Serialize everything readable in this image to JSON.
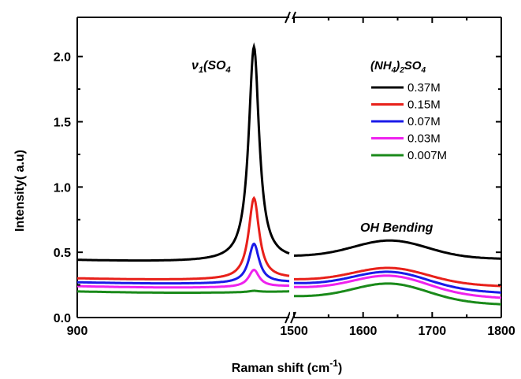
{
  "chart_data": {
    "type": "line",
    "xlabel": "Raman shift (cm",
    "xlabel_sup": "-1",
    "xlabel_close": ")",
    "ylabel": "Intensity( a.u)",
    "ylim": [
      0.0,
      2.3
    ],
    "y_ticks": [
      "0.0",
      "0.5",
      "1.0",
      "1.5",
      "2.0"
    ],
    "x_ticks_left": [
      "900"
    ],
    "x_ticks_right": [
      "1500",
      "1600",
      "1700",
      "1800"
    ],
    "x_break": true,
    "x_segments": [
      {
        "xlim": [
          900,
          1200
        ]
      },
      {
        "xlim": [
          1500,
          1800
        ]
      }
    ],
    "legend": {
      "title": "(NH4)2SO4",
      "title_parts": {
        "a": "(NH",
        "b": "4",
        "c": ")",
        "d": "2",
        "e": "SO",
        "f": "4"
      },
      "placement": "top-right"
    },
    "annotations": {
      "peak": {
        "main": "ν",
        "sub1": "1",
        "mid": "(SO",
        "sub2": "4"
      },
      "oh": "OH Bending"
    },
    "series": [
      {
        "name": "0.37M",
        "color": "#000000",
        "baseline_left": 0.44,
        "peak": 2.08,
        "baseline_right_start": 0.47,
        "oh_peak": 0.59,
        "baseline_right_end": 0.45
      },
      {
        "name": "0.15M",
        "color": "#e8201a",
        "baseline_left": 0.3,
        "peak": 0.92,
        "baseline_right_start": 0.29,
        "oh_peak": 0.38,
        "baseline_right_end": 0.24
      },
      {
        "name": "0.07M",
        "color": "#1a1ae8",
        "baseline_left": 0.27,
        "peak": 0.57,
        "baseline_right_start": 0.26,
        "oh_peak": 0.35,
        "baseline_right_end": 0.19
      },
      {
        "name": "0.03M",
        "color": "#ee22ee",
        "baseline_left": 0.24,
        "peak": 0.37,
        "baseline_right_start": 0.23,
        "oh_peak": 0.32,
        "baseline_right_end": 0.15
      },
      {
        "name": "0.007M",
        "color": "#1a8a1a",
        "baseline_left": 0.2,
        "peak": 0.21,
        "baseline_right_start": 0.16,
        "oh_peak": 0.26,
        "baseline_right_end": 0.1
      }
    ]
  }
}
